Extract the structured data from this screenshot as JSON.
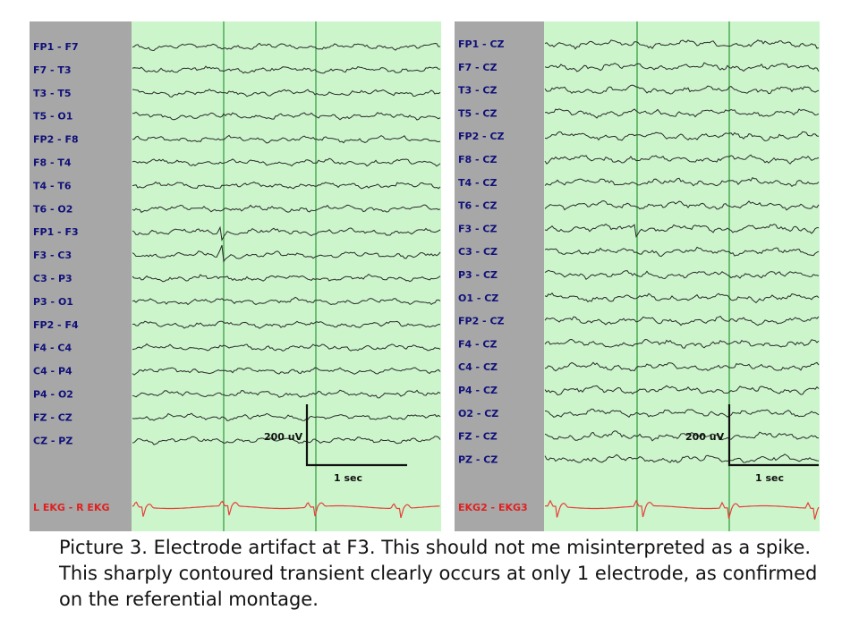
{
  "left_panel": {
    "channels": [
      "FP1 - F7",
      "F7 - T3",
      "T3 - T5",
      "T5 - O1",
      "FP2 - F8",
      "F8 - T4",
      "T4 - T6",
      "T6 - O2",
      "FP1 - F3",
      "F3 - C3",
      "C3 - P3",
      "P3 - O1",
      "FP2 - F4",
      "F4 - C4",
      "C4 - P4",
      "P4 - O2",
      "FZ - CZ",
      "CZ - PZ"
    ],
    "ekg_label": "L EKG - R EKG",
    "amplitude_label": "200 uV",
    "time_label": "1 sec"
  },
  "right_panel": {
    "channels": [
      "FP1 - CZ",
      "F7 - CZ",
      "T3 - CZ",
      "T5 - CZ",
      "FP2 - CZ",
      "F8 - CZ",
      "T4 - CZ",
      "T6 - CZ",
      "F3 - CZ",
      "C3 - CZ",
      "P3 - CZ",
      "O1 - CZ",
      "FP2 - CZ",
      "F4 - CZ",
      "C4 - CZ",
      "P4 - CZ",
      "O2 - CZ",
      "FZ - CZ",
      "PZ - CZ"
    ],
    "ekg_label": "EKG2 - EKG3",
    "amplitude_label": "200 uV",
    "time_label": "1 sec"
  },
  "colors": {
    "label_bg": "#a7a7a7",
    "trace_bg": "#ccf5cc",
    "trace": "#2b2b2b",
    "second_marker": "#2e9a3a",
    "ekg_trace": "#e8403a",
    "label_text": "#10107a",
    "ekg_label_text": "#e02020"
  },
  "caption": "Picture 3. Electrode artifact at F3. This should not me misinterpreted as a spike. This sharply contoured transient clearly occurs at only 1 electrode, as confirmed on the referential montage."
}
